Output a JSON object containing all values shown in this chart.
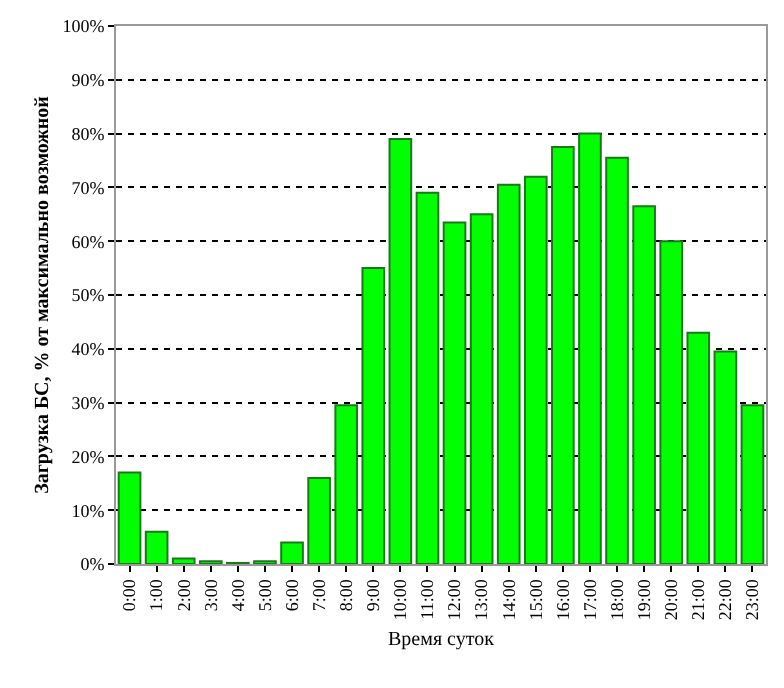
{
  "chart_data": {
    "type": "bar",
    "xlabel": "Время суток",
    "ylabel": "Загрузка БС, % от максимально возможной",
    "categories": [
      "0:00",
      "1:00",
      "2:00",
      "3:00",
      "4:00",
      "5:00",
      "6:00",
      "7:00",
      "8:00",
      "9:00",
      "10:00",
      "11:00",
      "12:00",
      "13:00",
      "14:00",
      "15:00",
      "16:00",
      "17:00",
      "18:00",
      "19:00",
      "20:00",
      "21:00",
      "22:00",
      "23:00"
    ],
    "values": [
      17,
      6,
      1,
      0.5,
      0.2,
      0.5,
      4,
      16,
      29.5,
      55,
      79,
      69,
      63.5,
      65,
      70.5,
      72,
      77.5,
      80,
      75.5,
      66.5,
      60,
      43,
      39.5,
      29.5
    ],
    "color": "#00ff00",
    "ylim": [
      0,
      100
    ],
    "yticks": [
      {
        "value": 0,
        "label": "0%"
      },
      {
        "value": 10,
        "label": "10%"
      },
      {
        "value": 20,
        "label": "20%"
      },
      {
        "value": 30,
        "label": "30%"
      },
      {
        "value": 40,
        "label": "40%"
      },
      {
        "value": 50,
        "label": "50%"
      },
      {
        "value": 60,
        "label": "60%"
      },
      {
        "value": 70,
        "label": "70%"
      },
      {
        "value": 80,
        "label": "80%"
      },
      {
        "value": 90,
        "label": "90%"
      },
      {
        "value": 100,
        "label": "100%"
      }
    ],
    "grid": "y"
  }
}
